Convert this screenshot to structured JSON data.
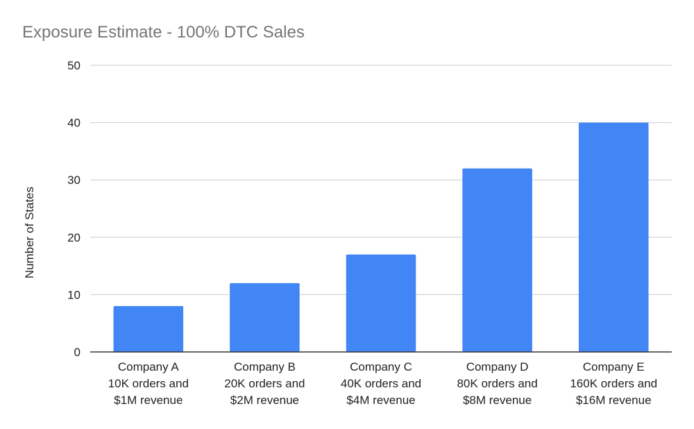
{
  "chart_data": {
    "type": "bar",
    "title": "Exposure Estimate - 100% DTC Sales",
    "xlabel": "",
    "ylabel": "Number of States",
    "ylim": [
      0,
      50
    ],
    "yticks": [
      0,
      10,
      20,
      30,
      40,
      50
    ],
    "grid": true,
    "categories": [
      [
        "Company A",
        "10K orders and",
        "$1M revenue"
      ],
      [
        "Company B",
        "20K orders and",
        "$2M revenue"
      ],
      [
        "Company C",
        "40K orders and",
        "$4M revenue"
      ],
      [
        "Company D",
        "80K orders and",
        "$8M revenue"
      ],
      [
        "Company E",
        "160K orders and",
        "$16M revenue"
      ]
    ],
    "values": [
      8,
      12,
      17,
      32,
      40
    ],
    "bar_color": "#4285f4"
  }
}
